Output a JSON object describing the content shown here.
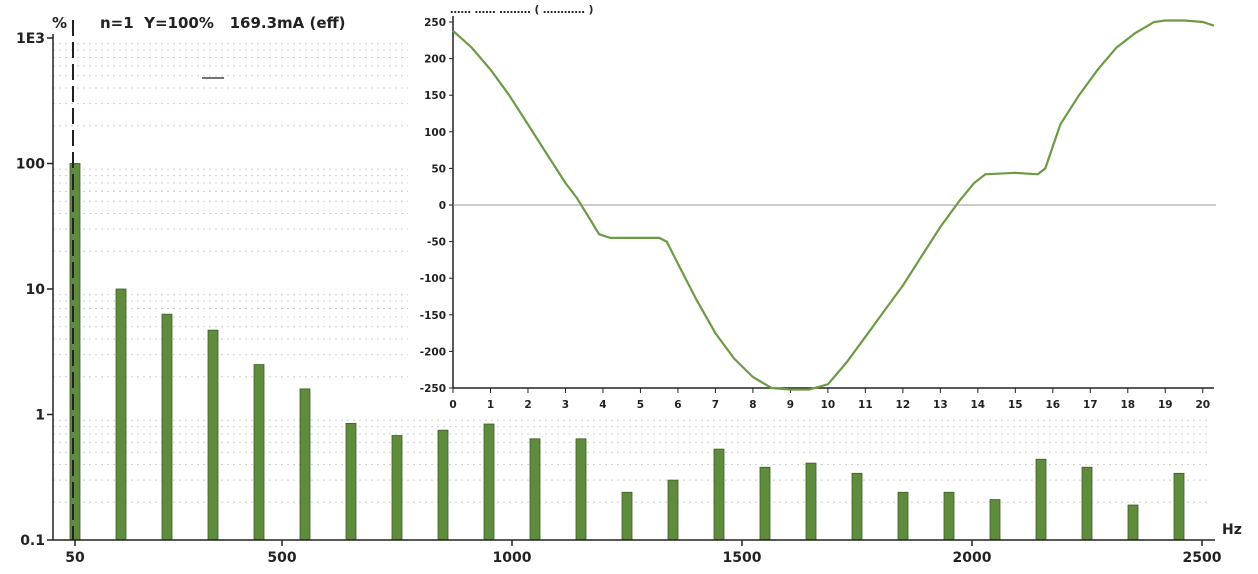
{
  "header": {
    "percent_label": "%",
    "info": "n=1  Y=100%   169.3mA (eff)",
    "inset_title": "……  ……  ……… ( ………… )"
  },
  "chart_data": [
    {
      "type": "bar",
      "title": "",
      "xlabel": "Hz",
      "ylabel": "%",
      "yscale": "log",
      "ylim": [
        0.1,
        1000
      ],
      "xlim": [
        0,
        2550
      ],
      "y_tick_labels": [
        "1E3",
        "100",
        "10",
        "1",
        "0.1"
      ],
      "x_tick_labels": [
        "50",
        "500",
        "1000",
        "1500",
        "2000",
        "2500"
      ],
      "grid": true,
      "color": "#5f8b3d",
      "bars": [
        {
          "harmonic": 1,
          "hz": 50,
          "value": 100
        },
        {
          "harmonic": 2,
          "hz": 150,
          "value": 10
        },
        {
          "harmonic": 3,
          "hz": 250,
          "value": 6.3
        },
        {
          "harmonic": 4,
          "hz": 350,
          "value": 4.7
        },
        {
          "harmonic": 5,
          "hz": 450,
          "value": 2.5
        },
        {
          "harmonic": 6,
          "hz": 550,
          "value": 1.6
        },
        {
          "harmonic": 7,
          "hz": 650,
          "value": 0.85
        },
        {
          "harmonic": 8,
          "hz": 750,
          "value": 0.68
        },
        {
          "harmonic": 9,
          "hz": 850,
          "value": 0.75
        },
        {
          "harmonic": 10,
          "hz": 950,
          "value": 0.84
        },
        {
          "harmonic": 11,
          "hz": 1050,
          "value": 0.64
        },
        {
          "harmonic": 12,
          "hz": 1150,
          "value": 0.64
        },
        {
          "harmonic": 13,
          "hz": 1250,
          "value": 0.24
        },
        {
          "harmonic": 14,
          "hz": 1350,
          "value": 0.3
        },
        {
          "harmonic": 15,
          "hz": 1450,
          "value": 0.53
        },
        {
          "harmonic": 16,
          "hz": 1550,
          "value": 0.38
        },
        {
          "harmonic": 17,
          "hz": 1650,
          "value": 0.41
        },
        {
          "harmonic": 18,
          "hz": 1750,
          "value": 0.34
        },
        {
          "harmonic": 19,
          "hz": 1850,
          "value": 0.24
        },
        {
          "harmonic": 20,
          "hz": 1950,
          "value": 0.24
        },
        {
          "harmonic": 21,
          "hz": 2050,
          "value": 0.21
        },
        {
          "harmonic": 22,
          "hz": 2150,
          "value": 0.44
        },
        {
          "harmonic": 23,
          "hz": 2250,
          "value": 0.38
        },
        {
          "harmonic": 24,
          "hz": 2350,
          "value": 0.19
        },
        {
          "harmonic": 25,
          "hz": 2450,
          "value": 0.34
        }
      ]
    },
    {
      "type": "line",
      "title": "",
      "xlabel": "",
      "ylabel": "",
      "xlim": [
        0,
        20.3
      ],
      "ylim": [
        -250,
        250
      ],
      "x_tick_labels": [
        "0",
        "1",
        "2",
        "3",
        "4",
        "5",
        "6",
        "7",
        "8",
        "9",
        "10",
        "11",
        "12",
        "13",
        "14",
        "15",
        "16",
        "17",
        "18",
        "19",
        "20"
      ],
      "y_tick_labels": [
        "250",
        "200",
        "150",
        "100",
        "50",
        "0",
        "-50",
        "-100",
        "-150",
        "-200",
        "-250"
      ],
      "zero_line": true,
      "color": "#6d9a45",
      "series": [
        {
          "x": [
            0,
            0.5,
            1,
            1.5,
            2,
            2.5,
            3,
            3.3,
            3.6,
            3.9,
            4.2,
            5.0,
            5.5,
            5.7,
            6.0,
            6.5,
            7.0,
            7.5,
            8.0,
            8.5,
            9.0,
            9.5,
            10.0,
            10.5,
            11.0,
            11.5,
            12.0,
            12.5,
            13.0,
            13.5,
            13.9,
            14.2,
            15.0,
            15.6,
            15.8,
            16.2,
            16.7,
            17.2,
            17.7,
            18.2,
            18.7,
            19.0,
            19.5,
            20.0,
            20.3
          ],
          "y": [
            238,
            215,
            185,
            150,
            110,
            70,
            30,
            10,
            -15,
            -40,
            -45,
            -45,
            -45,
            -50,
            -80,
            -130,
            -175,
            -210,
            -235,
            -250,
            -252,
            -252,
            -245,
            -215,
            -180,
            -145,
            -110,
            -70,
            -30,
            5,
            30,
            42,
            44,
            42,
            50,
            110,
            150,
            185,
            215,
            235,
            250,
            252,
            252,
            250,
            245
          ]
        }
      ]
    }
  ]
}
